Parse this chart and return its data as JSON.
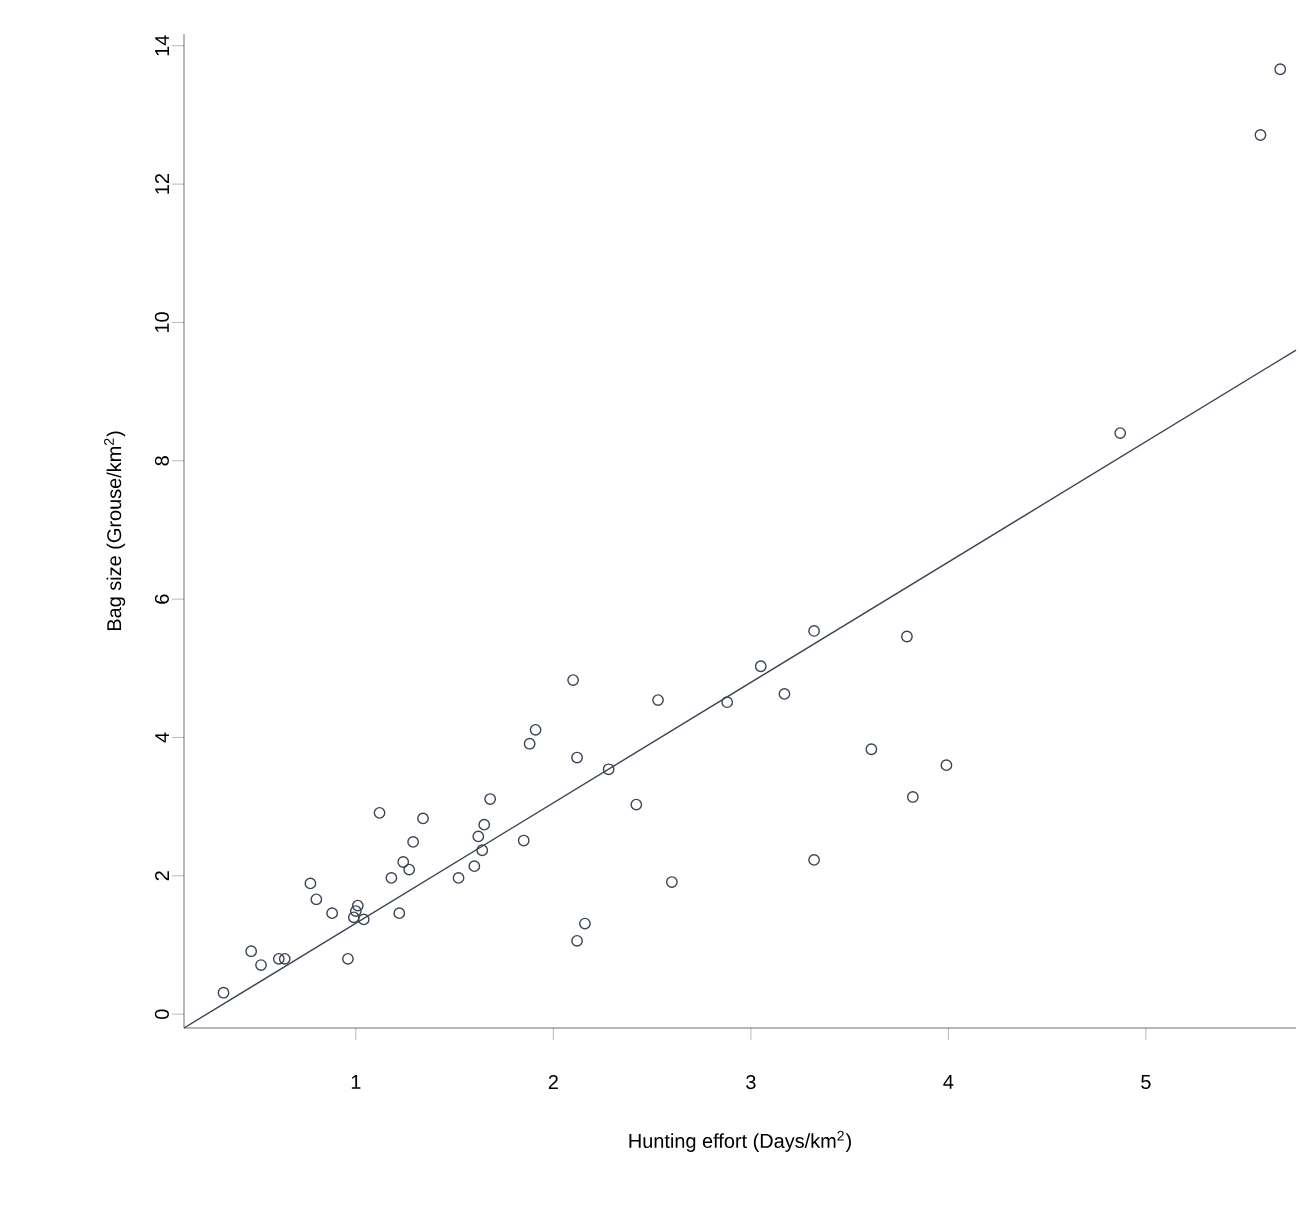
{
  "chart_data": {
    "type": "scatter",
    "xlabel": "Hunting effort (Days/km$^{2}$)",
    "ylabel": "Bag size (Grouse/km$^{2}$)",
    "xlim": [
      0.13,
      5.76
    ],
    "ylim": [
      -0.2,
      14.17
    ],
    "xticks": [
      1,
      2,
      3,
      4,
      5
    ],
    "yticks": [
      0,
      2,
      4,
      6,
      8,
      10,
      12,
      14
    ],
    "marker": "circle",
    "series": [
      {
        "color": "#3a4454",
        "x": [
          0.33,
          0.47,
          0.52,
          0.61,
          0.64,
          0.77,
          0.8,
          0.88,
          0.96,
          1.0,
          1.01,
          0.99,
          1.04,
          1.12,
          1.18,
          1.22,
          1.24,
          1.27,
          1.29,
          1.34,
          1.52,
          1.6,
          1.62,
          1.64,
          1.65,
          1.68,
          1.85,
          1.88,
          1.91,
          2.1,
          2.12,
          2.12,
          2.16,
          2.28,
          2.42,
          2.53,
          2.6,
          2.88,
          3.05,
          3.17,
          3.32,
          3.32,
          3.79,
          3.61,
          3.82,
          3.99,
          4.87,
          5.58,
          5.68
        ],
        "values": [
          0.31,
          0.91,
          0.71,
          0.8,
          0.8,
          1.89,
          1.66,
          1.46,
          0.8,
          1.49,
          1.57,
          1.4,
          1.37,
          2.91,
          1.97,
          1.46,
          2.2,
          2.09,
          2.49,
          2.83,
          1.97,
          2.14,
          2.57,
          2.37,
          2.74,
          3.11,
          2.51,
          3.91,
          4.11,
          4.83,
          3.71,
          1.06,
          1.31,
          3.54,
          3.03,
          4.54,
          1.91,
          4.51,
          5.03,
          4.63,
          2.23,
          5.54,
          5.46,
          3.83,
          3.14,
          3.6,
          8.4,
          12.71,
          13.66
        ]
      },
      {
        "type": "line",
        "color": "#3a4454",
        "marker": "none",
        "x": [
          0.13,
          5.76
        ],
        "values": [
          -0.2,
          9.6
        ]
      }
    ]
  }
}
